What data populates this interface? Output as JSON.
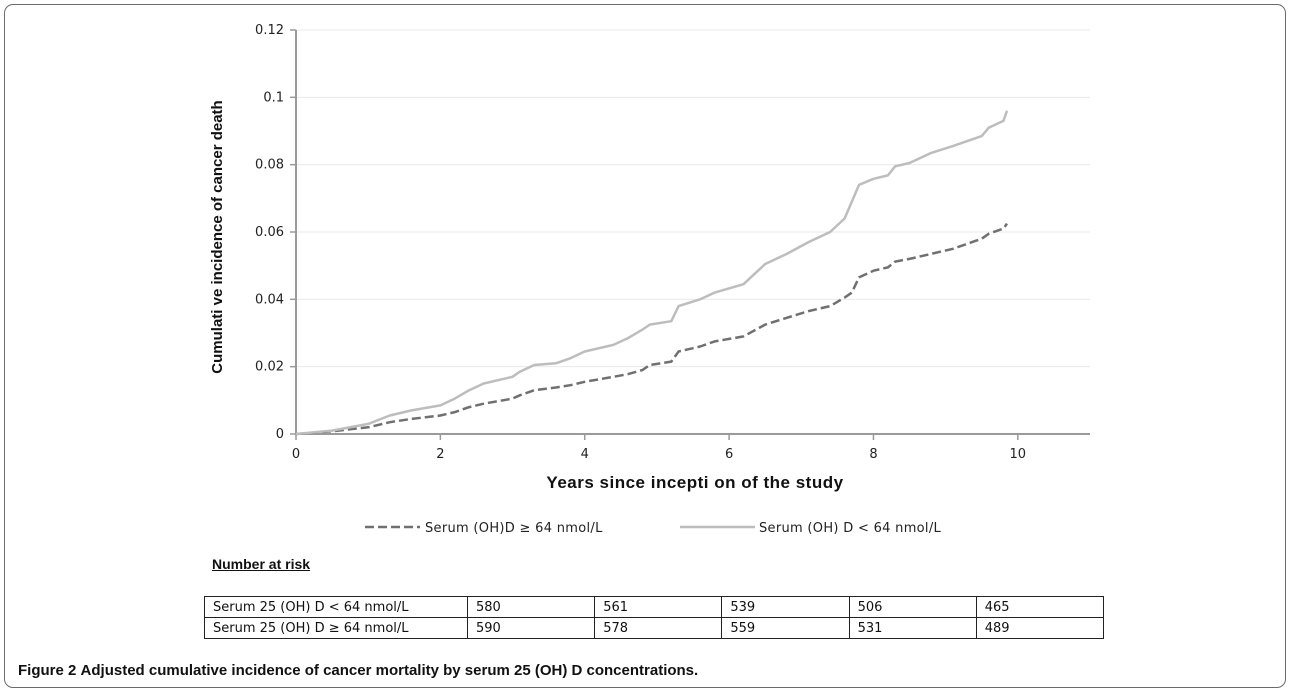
{
  "chart_data": {
    "type": "line",
    "title": "",
    "xlabel": "Years since incepti on of the study",
    "ylabel": "Cumulati ve incidence of cancer death",
    "xlim": [
      0,
      11
    ],
    "ylim": [
      0,
      0.12
    ],
    "x_ticks": [
      0,
      2,
      4,
      6,
      8,
      10
    ],
    "x_tick_labels": [
      "0",
      "2",
      "4",
      "6",
      "8",
      "10"
    ],
    "y_ticks": [
      0,
      0.02,
      0.04,
      0.06,
      0.08,
      0.1,
      0.12
    ],
    "y_tick_labels": [
      "0",
      "0.02",
      "0.04",
      "0.06",
      "0.08",
      "0.1",
      "0.12"
    ],
    "grid": "horizontal",
    "legend_position": "bottom",
    "series": [
      {
        "name": "Serum (OH)D ≥ 64 nmol/L",
        "color": "#707070",
        "dash": "dashed",
        "x": [
          0,
          0.5,
          1.0,
          1.3,
          1.6,
          2.0,
          2.2,
          2.4,
          2.6,
          3.0,
          3.1,
          3.3,
          3.6,
          3.8,
          4.0,
          4.4,
          4.6,
          4.8,
          4.9,
          5.2,
          5.3,
          5.6,
          5.8,
          6.2,
          6.5,
          6.8,
          7.1,
          7.4,
          7.6,
          7.7,
          7.8,
          8.0,
          8.2,
          8.3,
          8.5,
          8.8,
          9.1,
          9.3,
          9.5,
          9.6,
          9.8,
          9.85
        ],
        "y": [
          0,
          0.0008,
          0.002,
          0.0035,
          0.0045,
          0.0055,
          0.0065,
          0.008,
          0.009,
          0.0105,
          0.0115,
          0.013,
          0.0138,
          0.0145,
          0.0155,
          0.017,
          0.0178,
          0.019,
          0.0205,
          0.0215,
          0.0245,
          0.026,
          0.0275,
          0.029,
          0.0325,
          0.0345,
          0.0365,
          0.038,
          0.0405,
          0.042,
          0.0465,
          0.0485,
          0.0495,
          0.0512,
          0.052,
          0.0535,
          0.055,
          0.0565,
          0.058,
          0.0595,
          0.061,
          0.0625
        ]
      },
      {
        "name": "Serum (OH) D < 64 nmol/L",
        "color": "#bdbdbd",
        "dash": "solid",
        "x": [
          0,
          0.5,
          1.0,
          1.3,
          1.6,
          2.0,
          2.2,
          2.4,
          2.6,
          3.0,
          3.1,
          3.3,
          3.6,
          3.8,
          4.0,
          4.4,
          4.6,
          4.8,
          4.9,
          5.2,
          5.3,
          5.6,
          5.8,
          6.2,
          6.5,
          6.8,
          7.1,
          7.4,
          7.6,
          7.7,
          7.8,
          8.0,
          8.2,
          8.3,
          8.5,
          8.8,
          9.1,
          9.3,
          9.5,
          9.6,
          9.8,
          9.85
        ],
        "y": [
          0,
          0.001,
          0.003,
          0.0055,
          0.007,
          0.0085,
          0.0105,
          0.013,
          0.015,
          0.017,
          0.0185,
          0.0205,
          0.021,
          0.0225,
          0.0245,
          0.0265,
          0.0285,
          0.031,
          0.0325,
          0.0335,
          0.038,
          0.04,
          0.042,
          0.0445,
          0.0505,
          0.0535,
          0.057,
          0.06,
          0.064,
          0.069,
          0.074,
          0.0758,
          0.0768,
          0.0795,
          0.0805,
          0.0835,
          0.0855,
          0.087,
          0.0885,
          0.091,
          0.093,
          0.096
        ]
      }
    ]
  },
  "risk_table": {
    "heading": "Number at risk",
    "rows": [
      {
        "label": "Serum 25 (OH) D < 64 nmol/L",
        "values": [
          "580",
          "561",
          "539",
          "506",
          "465"
        ]
      },
      {
        "label": "Serum 25 (OH) D ≥ 64 nmol/L",
        "values": [
          "590",
          "578",
          "559",
          "531",
          "489"
        ]
      }
    ]
  },
  "caption": {
    "figure_number": "Figure 2",
    "text": "Adjusted cumulative incidence of cancer mortality by serum 25 (OH) D concentrations."
  }
}
